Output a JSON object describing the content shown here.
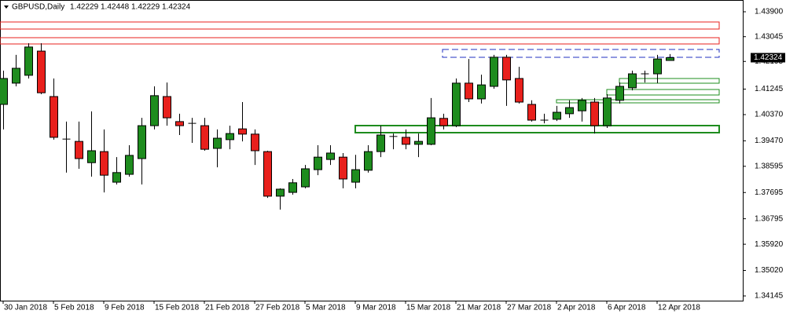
{
  "chart_data": {
    "type": "candlestick",
    "title": "GBPUSD,Daily",
    "categories": [
      "30 Jan 2018",
      null,
      null,
      null,
      "5 Feb 2018",
      null,
      null,
      null,
      "9 Feb 2018",
      null,
      null,
      null,
      "15 Feb 2018",
      null,
      null,
      null,
      "21 Feb 2018",
      null,
      null,
      null,
      "27 Feb 2018",
      null,
      null,
      null,
      "5 Mar 2018",
      null,
      null,
      null,
      "9 Mar 2018",
      null,
      null,
      null,
      "15 Mar 2018",
      null,
      null,
      null,
      "21 Mar 2018",
      null,
      null,
      null,
      "27 Mar 2018",
      null,
      null,
      null,
      "2 Apr 2018",
      null,
      null,
      null,
      "6 Apr 2018",
      null,
      null,
      null,
      "12 Apr 2018",
      null
    ],
    "open": [
      1.4072,
      1.4145,
      1.4172,
      1.4255,
      1.4099,
      1.3953,
      1.3945,
      1.3872,
      1.391,
      1.3805,
      1.3832,
      1.3886,
      1.3999,
      1.4099,
      1.4013,
      1.4007,
      1.3999,
      1.3921,
      1.3951,
      1.3988,
      1.397,
      1.391,
      1.3757,
      1.377,
      1.3789,
      1.3848,
      1.3883,
      1.3891,
      1.3805,
      1.3846,
      1.391,
      1.3962,
      1.3959,
      1.3935,
      1.3935,
      1.4024,
      1.3999,
      1.4145,
      1.4091,
      1.4134,
      1.4234,
      1.4161,
      1.4072,
      1.4018,
      1.4021,
      1.404,
      1.405,
      1.408,
      1.3999,
      1.4086,
      1.4129,
      1.4177,
      1.4177,
      1.42229
    ],
    "high": [
      1.4188,
      1.4242,
      1.4282,
      1.4282,
      1.4161,
      1.4013,
      1.4013,
      1.4048,
      1.3986,
      1.3891,
      1.3932,
      1.4026,
      1.4134,
      1.4147,
      1.404,
      1.4026,
      1.4026,
      1.3986,
      1.3999,
      1.408,
      1.3986,
      1.3913,
      1.3784,
      1.3816,
      1.3864,
      1.3932,
      1.3932,
      1.3905,
      1.3899,
      1.3932,
      1.3999,
      1.3972,
      1.3986,
      1.3972,
      1.4094,
      1.404,
      1.4161,
      1.4228,
      1.4174,
      1.4242,
      1.4242,
      1.4201,
      1.4086,
      1.404,
      1.4067,
      1.4086,
      1.4094,
      1.4094,
      1.4107,
      1.4147,
      1.4188,
      1.4188,
      1.4242,
      1.42448
    ],
    "low": [
      1.3986,
      1.4134,
      1.4161,
      1.4107,
      1.3951,
      1.3838,
      1.3851,
      1.3824,
      1.377,
      1.3797,
      1.3824,
      1.3797,
      1.3986,
      1.3999,
      1.3967,
      1.394,
      1.3913,
      1.3856,
      1.3918,
      1.3945,
      1.3864,
      1.3751,
      1.3711,
      1.3762,
      1.3784,
      1.3829,
      1.3864,
      1.3784,
      1.3784,
      1.3838,
      1.3891,
      1.3918,
      1.3918,
      1.3891,
      1.3932,
      1.3986,
      1.3994,
      1.408,
      1.4075,
      1.4126,
      1.4067,
      1.4075,
      1.4013,
      1.4007,
      1.4015,
      1.4026,
      1.4013,
      1.3972,
      1.3991,
      1.4075,
      1.412,
      1.4147,
      1.4145,
      1.42229
    ],
    "close": [
      1.4161,
      1.4196,
      1.4269,
      1.4112,
      1.3959,
      1.3953,
      1.3886,
      1.3913,
      1.3829,
      1.3838,
      1.3897,
      1.3999,
      1.4102,
      1.4026,
      1.3999,
      1.4007,
      1.3918,
      1.3956,
      1.3972,
      1.397,
      1.3913,
      1.3757,
      1.3781,
      1.3803,
      1.3851,
      1.3891,
      1.3905,
      1.3816,
      1.3848,
      1.391,
      1.3967,
      1.3962,
      1.3935,
      1.3945,
      1.4026,
      1.3999,
      1.4145,
      1.4091,
      1.4139,
      1.4234,
      1.4156,
      1.408,
      1.4018,
      1.4018,
      1.4045,
      1.4061,
      1.4086,
      1.3999,
      1.4094,
      1.4134,
      1.4177,
      1.4177,
      1.4228,
      1.42324
    ],
    "up_color": "#1e8c1e",
    "down_color": "#e8201c",
    "ylim": [
      1.33983,
      1.44304
    ],
    "yticks": [
      {
        "value": 1.439,
        "label": "1.43900"
      },
      {
        "value": 1.43045,
        "label": "1.43045"
      },
      {
        "value": 1.42195,
        "label": "1.42195"
      },
      {
        "value": 1.41245,
        "label": "1.41245"
      },
      {
        "value": 1.4037,
        "label": "1.40370"
      },
      {
        "value": 1.3947,
        "label": "1.39470"
      },
      1.38595,
      1.37695,
      1.36795,
      {
        "value": 1.3592,
        "label": "1.35920"
      },
      {
        "value": 1.3502,
        "label": "1.35020"
      },
      1.34145
    ]
  }
}
